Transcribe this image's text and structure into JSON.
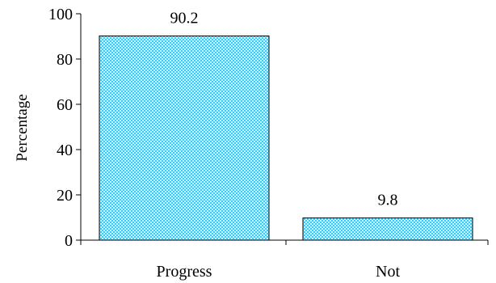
{
  "chart_data": {
    "type": "bar",
    "title": "",
    "xlabel": "",
    "ylabel": "Percentage",
    "categories": [
      "Progress",
      "Not"
    ],
    "values": [
      90.2,
      9.8
    ],
    "data_labels": [
      "90.2",
      "9.8"
    ],
    "ylim": [
      0,
      100
    ],
    "yticks": [
      0,
      20,
      40,
      60,
      80,
      100
    ],
    "ytick_labels": [
      "0",
      "20",
      "40",
      "60",
      "80",
      "100"
    ],
    "grid": false,
    "legend": "none",
    "bar_fill": "#33ccff",
    "bar_pattern": "small-checker",
    "bar_pattern_dot_color": "#ffffff",
    "bar_edge": "#000000"
  }
}
